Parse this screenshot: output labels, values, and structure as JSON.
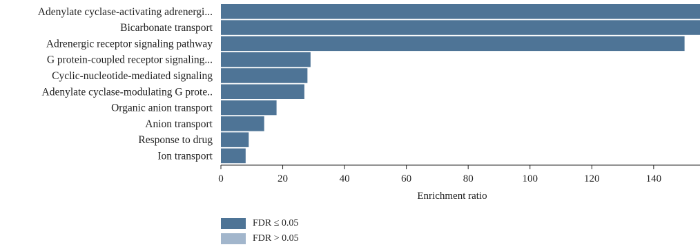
{
  "chart_data": {
    "type": "bar",
    "orientation": "horizontal",
    "categories": [
      "Adenylate cyclase-activating adrenergi...",
      "Bicarbonate transport",
      "Adrenergic receptor signaling pathway",
      "G protein-coupled receptor signaling...",
      "Cyclic-nucleotide-mediated signaling",
      "Adenylate cyclase-modulating G prote..",
      "Organic anion transport",
      "Anion transport",
      "Response to drug",
      "Ion transport"
    ],
    "values": [
      155,
      155,
      150,
      29,
      28,
      27,
      18,
      14,
      9,
      8
    ],
    "xlabel": "Enrichment ratio",
    "xlim": [
      0,
      155
    ],
    "xticks": [
      0,
      20,
      40,
      60,
      80,
      100,
      120,
      140
    ],
    "grid": false,
    "bar_color": "#4e7496",
    "legend_position": "bottom",
    "legend": [
      {
        "label": "FDR ≤ 0.05",
        "color": "#4e7496"
      },
      {
        "label": "FDR > 0.05",
        "color": "#a2b6cc"
      }
    ]
  }
}
